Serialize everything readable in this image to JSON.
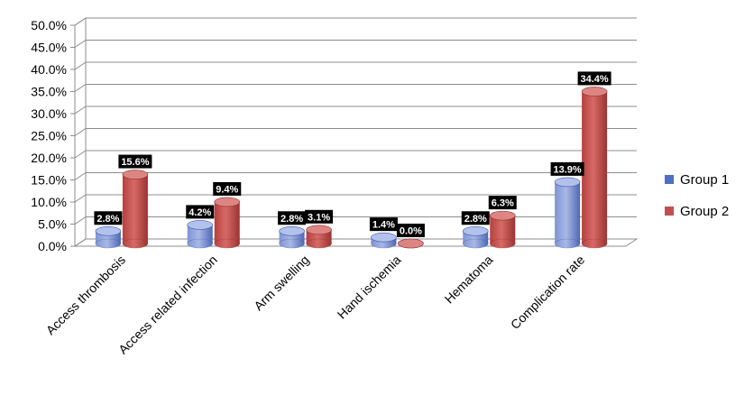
{
  "chart_data": {
    "type": "bar",
    "categories": [
      "Access thrombosis",
      "Access related infection",
      "Arm swelling",
      "Hand ischemia",
      "Hematoma",
      "Complication rate"
    ],
    "series": [
      {
        "name": "Group 1",
        "values": [
          2.8,
          4.2,
          2.8,
          1.4,
          2.8,
          13.9
        ],
        "labels": [
          "2.8%",
          "4.2%",
          "2.8%",
          "1.4%",
          "2.8%",
          "13.9%"
        ],
        "color": "#4f6fc4"
      },
      {
        "name": "Group 2",
        "values": [
          15.6,
          9.4,
          3.1,
          0.0,
          6.3,
          34.4
        ],
        "labels": [
          "15.6%",
          "9.4%",
          "3.1%",
          "0.0%",
          "6.3%",
          "34.4%"
        ],
        "color": "#c0504d"
      }
    ],
    "yticks": [
      "0.0%",
      "5.0%",
      "10.0%",
      "15.0%",
      "20.0%",
      "25.0%",
      "30.0%",
      "35.0%",
      "40.0%",
      "45.0%",
      "50.0%"
    ],
    "ylim": [
      0,
      50
    ],
    "grid": true,
    "legend_position": "right",
    "style": "3d-cylinder"
  }
}
